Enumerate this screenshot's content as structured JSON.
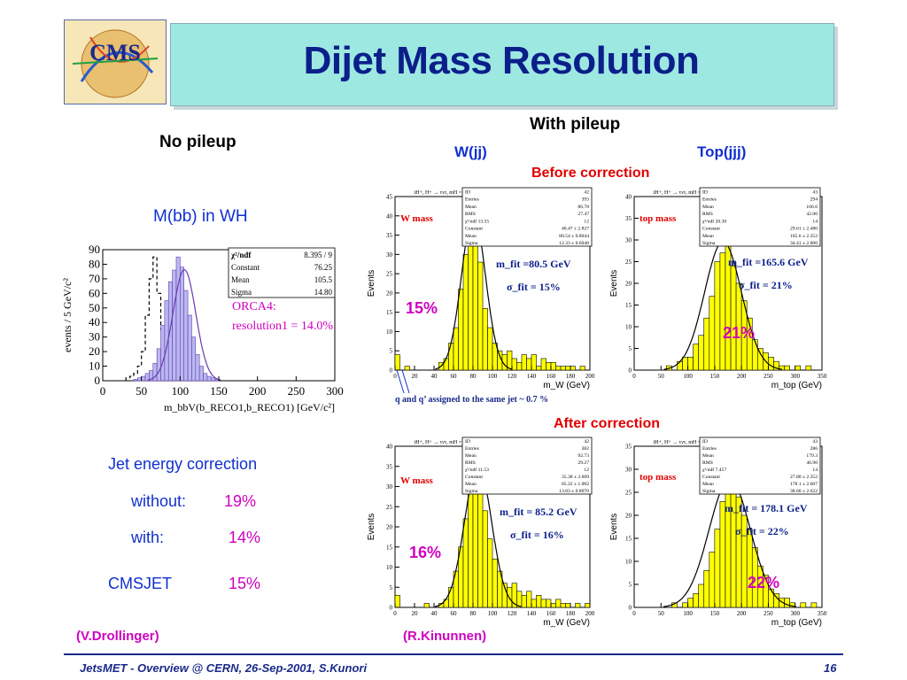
{
  "title": "Dijet Mass Resolution",
  "logo_text": "CMS",
  "labels": {
    "no_pileup": "No pileup",
    "with_pileup": "With pileup",
    "wjj": "W(jj)",
    "topjjj": "Top(jjj)",
    "before": "Before correction",
    "after": "After correction",
    "mbb": "M(bb) in WH",
    "jet_corr": "Jet energy correction",
    "without": "without:",
    "without_val": "19%",
    "with": "with:",
    "with_val": "14%",
    "cmsjet": "CMSJET",
    "cmsjet_val": "15%",
    "credit1": "(V.Drollinger)",
    "credit2": "(R.Kinunnen)",
    "note": "q and q’ assigned to the same jet  ~ 0.7 %"
  },
  "footer": {
    "left": "JetsMET - Overview @ CERN, 26-Sep-2001, S.Kunori",
    "right": "16"
  },
  "colors": {
    "title": "#0b1f8a",
    "band": "#9ee8e2",
    "hist_yellow": "#ffff00",
    "hist_violet": "#b8b8f0",
    "pct": "#d000c0"
  },
  "chart_data": [
    {
      "type": "bar",
      "id": "mbb",
      "ylabel": "events / 5 GeV/c²",
      "xlabel": "m_bbV(b_RECO1,b_RECO1) [GeV/c²]",
      "xlim": [
        0,
        300
      ],
      "ylim": [
        0,
        90
      ],
      "xticks": [
        0,
        50,
        100,
        150,
        200,
        250,
        300
      ],
      "yticks": [
        0,
        10,
        20,
        30,
        40,
        50,
        60,
        70,
        80,
        90
      ],
      "stats": [
        [
          "χ²/ndf",
          "8.395 / 9"
        ],
        [
          "Constant",
          "76.25"
        ],
        [
          "Mean",
          "105.5"
        ],
        [
          "Sigma",
          "14.80"
        ]
      ],
      "annotation": [
        "ORCA4:",
        "resolution1 = 14.0%"
      ],
      "bin_width": 5,
      "x_start": 40,
      "values": [
        1,
        2,
        3,
        5,
        7,
        12,
        22,
        38,
        55,
        68,
        76,
        85,
        78,
        62,
        45,
        30,
        18,
        10,
        5,
        3,
        2,
        1
      ],
      "dashed_start": 30,
      "dashed": [
        2,
        3,
        5,
        10,
        20,
        45,
        70,
        85,
        60,
        35,
        20,
        10,
        6,
        3,
        2,
        1
      ]
    },
    {
      "type": "bar",
      "id": "w_before",
      "ylabel": "Events",
      "xlabel": "m_W (GeV)",
      "hist_title": "tH+, H+ → τντ, mH = 200 GeV",
      "xlim": [
        0,
        200
      ],
      "ylim": [
        0,
        45
      ],
      "xticks": [
        0,
        20,
        40,
        60,
        80,
        100,
        120,
        140,
        160,
        180,
        200
      ],
      "yticks": [
        0,
        5,
        10,
        15,
        20,
        25,
        30,
        35,
        40,
        45
      ],
      "stats": [
        [
          "ID",
          "42"
        ],
        [
          "Entries",
          "393"
        ],
        [
          "Mean",
          "86.78"
        ],
        [
          "RMS",
          "27.47"
        ],
        [
          "χ²/ndf 13.55",
          "12"
        ],
        [
          "Constant",
          "40.47 ± 2.827"
        ],
        [
          "Mean",
          "80.54 ± 0.8044"
        ],
        [
          "Sigma",
          "12.33 ± 0.6048"
        ]
      ],
      "label": "W mass",
      "fit_text": "m_fit =80.5 GeV",
      "sigma_text": "σ_fit = 15%",
      "pct": "15%",
      "bin_width": 5,
      "x_start": 0,
      "values": [
        4,
        0,
        1,
        0,
        0,
        0,
        0,
        0,
        0,
        2,
        3,
        7,
        11,
        21,
        30,
        41,
        38,
        28,
        16,
        11,
        7,
        5,
        4,
        5,
        3,
        2,
        4,
        3,
        4,
        1,
        3,
        2,
        2,
        1,
        1,
        1,
        1,
        0,
        1,
        0
      ],
      "fit": {
        "mu": 80.5,
        "sigma": 12.3,
        "amp": 40.5
      }
    },
    {
      "type": "bar",
      "id": "top_before",
      "ylabel": "Events",
      "xlabel": "m_top (GeV)",
      "hist_title": "tH+, H+ → τντ, mH = 200 GeV",
      "xlim": [
        0,
        350
      ],
      "ylim": [
        0,
        40
      ],
      "xticks": [
        0,
        50,
        100,
        150,
        200,
        250,
        300,
        350
      ],
      "yticks": [
        0,
        5,
        10,
        15,
        20,
        25,
        30,
        35,
        40
      ],
      "stats": [
        [
          "ID",
          "43"
        ],
        [
          "Entries",
          "294"
        ],
        [
          "Mean",
          "166.6"
        ],
        [
          "RMS",
          "42.00"
        ],
        [
          "χ²/ndf 20.30",
          "14"
        ],
        [
          "Constant",
          "29.61 ± 2.480"
        ],
        [
          "Mean",
          "165.6 ± 2.352"
        ],
        [
          "Sigma",
          "34.41 ± 2.006"
        ]
      ],
      "label": "top mass",
      "fit_text": "m_fit =165.6 GeV",
      "sigma_text": "σ_fit = 21%",
      "pct": "21%",
      "bin_width": 10,
      "x_start": 60,
      "values": [
        1,
        0,
        2,
        3,
        3,
        6,
        8,
        12,
        17,
        25,
        27,
        30,
        24,
        20,
        16,
        12,
        7,
        5,
        4,
        3,
        2,
        1,
        1,
        0,
        1,
        0,
        1
      ],
      "fit": {
        "mu": 165.6,
        "sigma": 34.4,
        "amp": 29.6
      }
    },
    {
      "type": "bar",
      "id": "w_after",
      "ylabel": "Events",
      "xlabel": "m_W (GeV)",
      "hist_title": "tH+, H+ → τντ, mH = 200 GeV",
      "xlim": [
        0,
        200
      ],
      "ylim": [
        0,
        40
      ],
      "xticks": [
        0,
        20,
        40,
        60,
        80,
        100,
        120,
        140,
        160,
        180,
        200
      ],
      "yticks": [
        0,
        5,
        10,
        15,
        20,
        25,
        30,
        35,
        40
      ],
      "stats": [
        [
          "ID",
          "42"
        ],
        [
          "Entries",
          "382"
        ],
        [
          "Mean",
          "92.73"
        ],
        [
          "RMS",
          "29.27"
        ],
        [
          "χ²/ndf 11.53",
          "12"
        ],
        [
          "Constant",
          "35.38 ± 2.609"
        ],
        [
          "Mean",
          "85.22 ± 1.002"
        ],
        [
          "Sigma",
          "13.83 ± 0.8070"
        ]
      ],
      "label": "W mass",
      "fit_text": "m_fit = 85.2 GeV",
      "sigma_text": "σ_fit = 16%",
      "pct": "16%",
      "bin_width": 5,
      "x_start": 0,
      "values": [
        3,
        0,
        0,
        0,
        0,
        0,
        1,
        0,
        0,
        1,
        2,
        5,
        9,
        15,
        22,
        31,
        35,
        33,
        24,
        17,
        12,
        9,
        6,
        5,
        6,
        4,
        3,
        4,
        2,
        3,
        2,
        2,
        1,
        2,
        1,
        1,
        0,
        1,
        0,
        1
      ],
      "fit": {
        "mu": 85.2,
        "sigma": 13.8,
        "amp": 35.4
      }
    },
    {
      "type": "bar",
      "id": "top_after",
      "ylabel": "Events",
      "xlabel": "m_top (GeV)",
      "hist_title": "tH+, H+ → τντ, mH = 200 GeV",
      "xlim": [
        0,
        350
      ],
      "ylim": [
        0,
        35
      ],
      "xticks": [
        0,
        50,
        100,
        150,
        200,
        250,
        300,
        350
      ],
      "yticks": [
        0,
        5,
        10,
        15,
        20,
        25,
        30,
        35
      ],
      "stats": [
        [
          "ID",
          "43"
        ],
        [
          "Entries",
          "286"
        ],
        [
          "Mean",
          "179.3"
        ],
        [
          "RMS",
          "46.90"
        ],
        [
          "χ²/ndf 7.457",
          "14"
        ],
        [
          "Constant",
          "27.80 ± 2.352"
        ],
        [
          "Mean",
          "178.1 ± 2.607"
        ],
        [
          "Sigma",
          "38.60 ± 2.622"
        ]
      ],
      "label": "top mass",
      "fit_text": "m_fit = 178.1 GeV",
      "sigma_text": "σ_fit = 22%",
      "pct": "22%",
      "bin_width": 10,
      "x_start": 70,
      "values": [
        1,
        0,
        1,
        2,
        3,
        5,
        8,
        12,
        17,
        23,
        27,
        26,
        24,
        20,
        17,
        13,
        9,
        7,
        4,
        3,
        2,
        2,
        1,
        0,
        1,
        0,
        1
      ],
      "fit": {
        "mu": 178.1,
        "sigma": 38.6,
        "amp": 27.8
      }
    }
  ]
}
